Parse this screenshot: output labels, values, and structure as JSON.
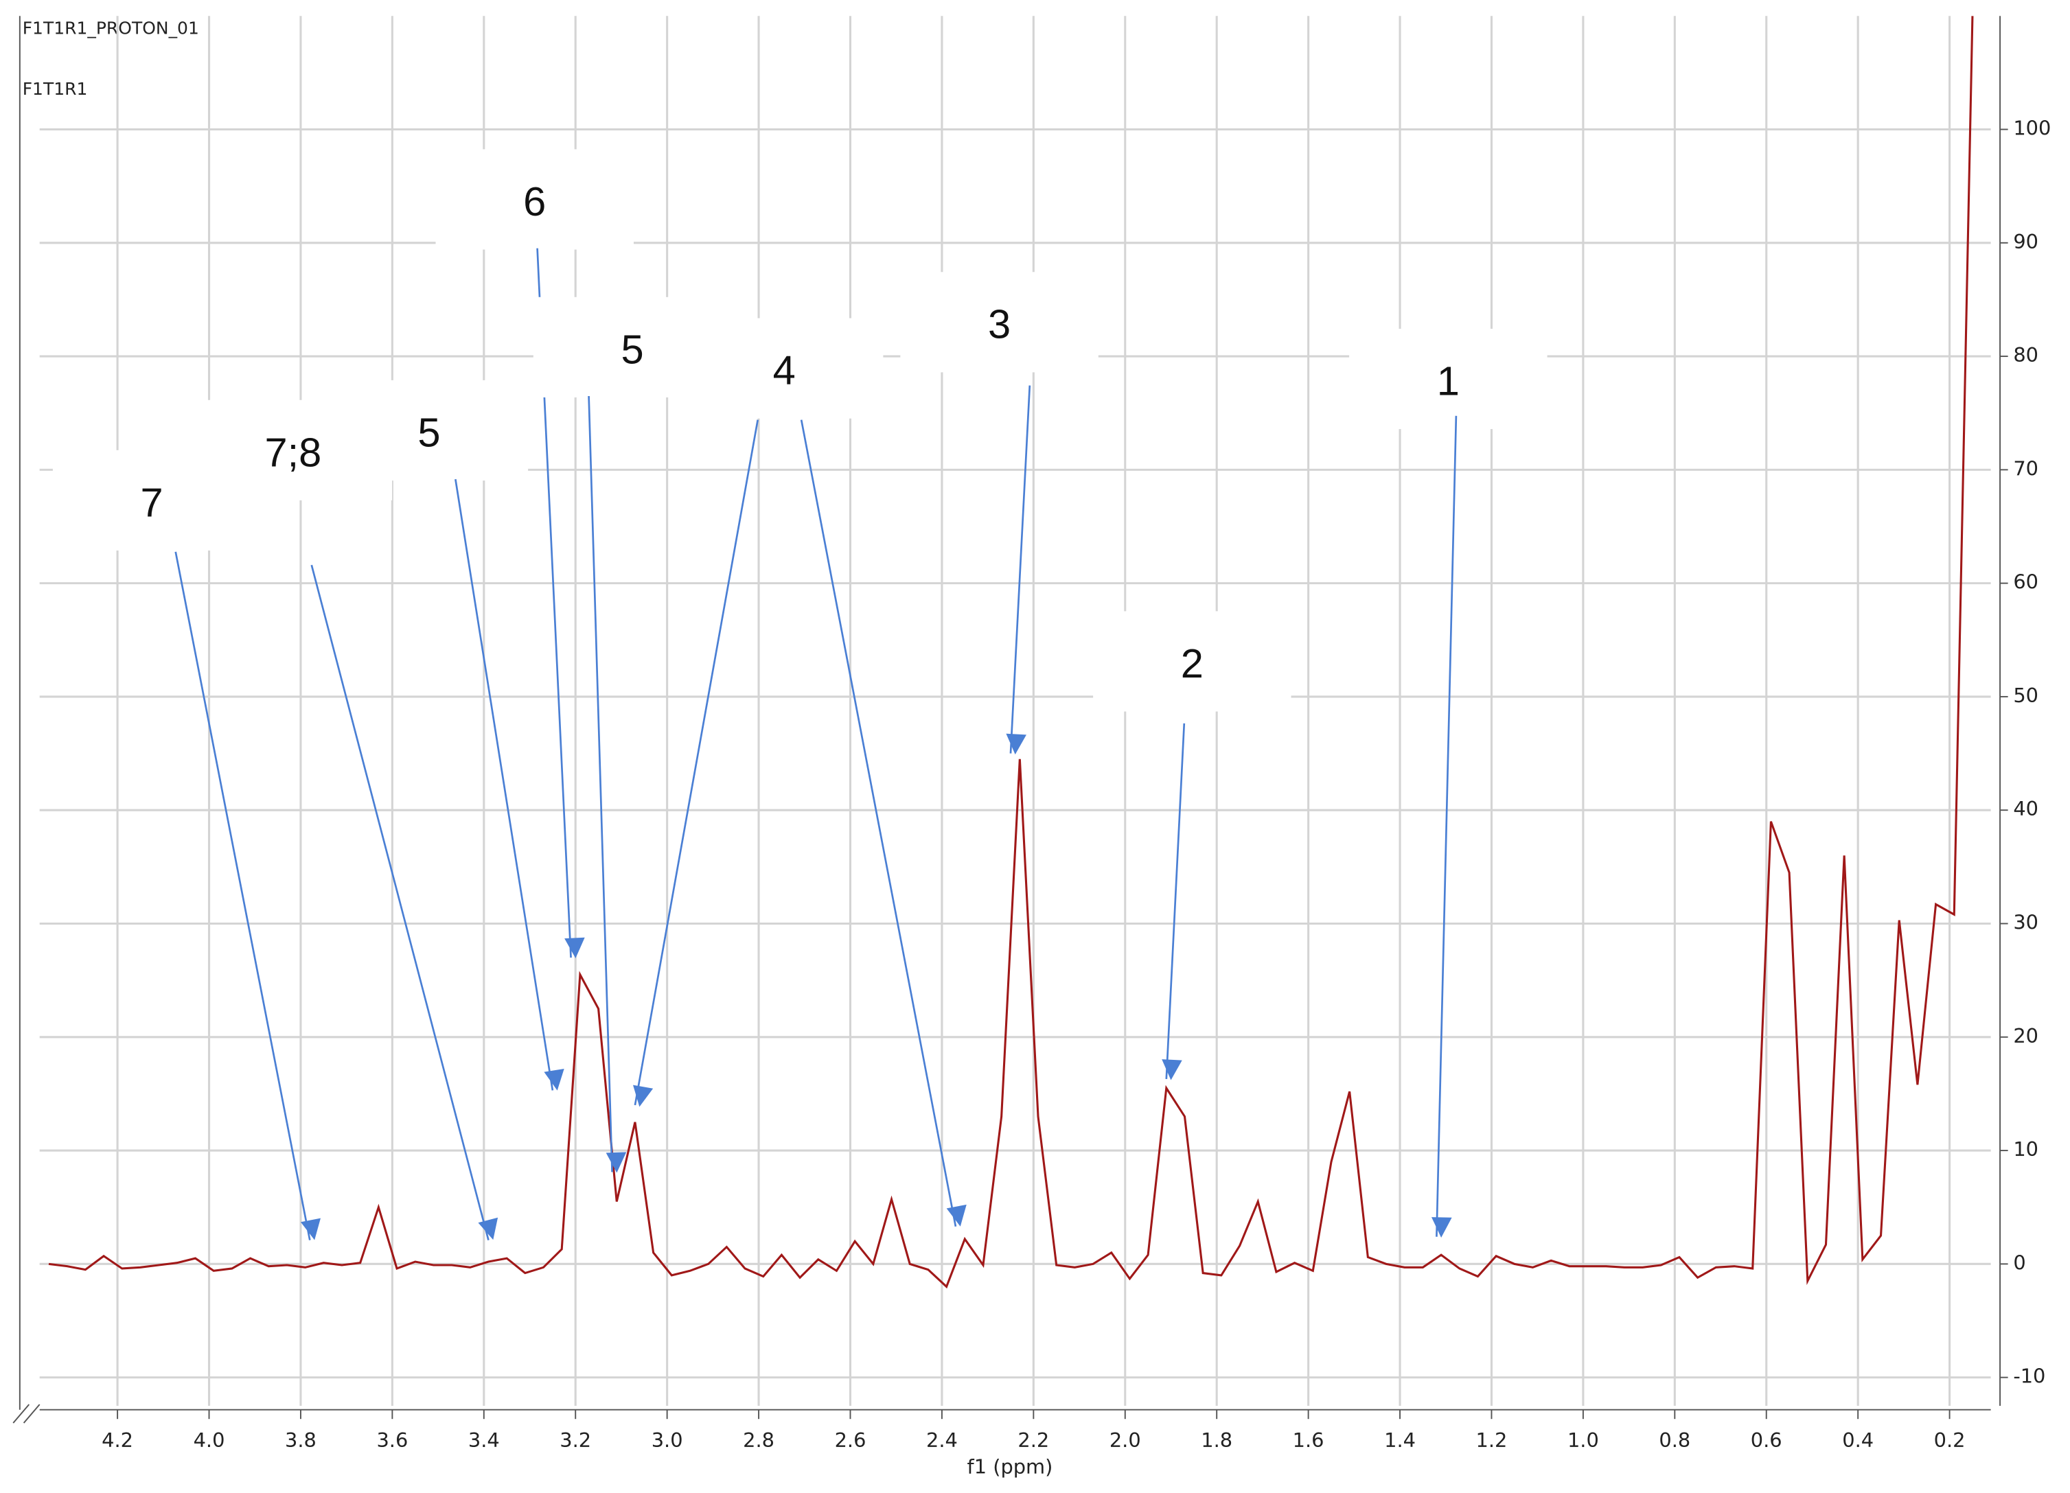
{
  "chart_data": {
    "type": "line",
    "header": [
      "F1T1R1_PROTON_01",
      "F1T1R1"
    ],
    "xlabel": "f1 (ppm)",
    "xlim": [
      4.37,
      0.11
    ],
    "ylim": [
      -12.5,
      110
    ],
    "xticks": [
      4.2,
      {
        "value": 4,
        "label": "4.0"
      },
      3.8,
      3.6,
      3.4,
      3.2,
      {
        "value": 3,
        "label": "3.0"
      },
      2.8,
      2.6,
      2.4,
      2.2,
      {
        "value": 2,
        "label": "2.0"
      },
      1.8,
      1.6,
      1.4,
      1.2,
      {
        "value": 1,
        "label": "1.0"
      },
      0.8,
      0.6,
      0.4,
      0.2
    ],
    "yticks": [
      -10,
      0,
      10,
      20,
      30,
      40,
      50,
      60,
      70,
      80,
      90,
      100
    ],
    "grid": true,
    "color": "#a01818",
    "arrow_color": "#4a7fd4",
    "x": [
      4.35,
      4.31,
      4.27,
      4.23,
      4.19,
      4.15,
      4.11,
      4.07,
      4.03,
      3.99,
      3.95,
      3.91,
      3.87,
      3.83,
      3.79,
      3.75,
      3.71,
      3.67,
      3.63,
      3.59,
      3.55,
      3.51,
      3.47,
      3.43,
      3.39,
      3.35,
      3.31,
      3.27,
      3.23,
      3.19,
      3.15,
      3.11,
      3.07,
      3.03,
      2.99,
      2.95,
      2.91,
      2.87,
      2.83,
      2.79,
      2.75,
      2.71,
      2.67,
      2.63,
      2.59,
      2.55,
      2.51,
      2.47,
      2.43,
      2.39,
      2.35,
      2.31,
      2.27,
      2.23,
      2.19,
      2.15,
      2.11,
      2.07,
      2.03,
      1.99,
      1.95,
      1.91,
      1.87,
      1.83,
      1.79,
      1.75,
      1.71,
      1.67,
      1.63,
      1.59,
      1.55,
      1.51,
      1.47,
      1.43,
      1.39,
      1.35,
      1.31,
      1.27,
      1.23,
      1.19,
      1.15,
      1.11,
      1.07,
      1.03,
      0.99,
      0.95,
      0.91,
      0.87,
      0.83,
      0.79,
      0.75,
      0.71,
      0.67,
      0.63,
      0.59,
      0.55,
      0.51,
      0.47,
      0.43,
      0.39,
      0.35,
      0.31,
      0.27,
      0.23,
      0.19,
      0.15
    ],
    "values": [
      0,
      -0.2,
      -0.5,
      0.7,
      -0.4,
      -0.3,
      -0.1,
      0.1,
      0.5,
      -0.6,
      -0.4,
      0.5,
      -0.2,
      -0.1,
      -0.3,
      0.1,
      -0.1,
      0.1,
      5,
      -0.4,
      0.2,
      -0.1,
      -0.1,
      -0.3,
      0.2,
      0.5,
      -0.8,
      -0.3,
      1.3,
      25.5,
      22.5,
      5.5,
      12.5,
      1,
      -1,
      -0.6,
      0,
      1.5,
      -0.4,
      -1.1,
      0.8,
      -1.2,
      0.4,
      -0.6,
      2,
      0,
      5.7,
      0,
      -0.5,
      -2,
      2.2,
      -0.1,
      13,
      44.5,
      13,
      -0.1,
      -0.3,
      0,
      1,
      -1.3,
      0.8,
      15.5,
      13,
      -0.8,
      -1,
      1.6,
      5.5,
      -0.7,
      0.1,
      -0.6,
      9,
      15.2,
      0.6,
      0,
      -0.3,
      -0.3,
      0.8,
      -0.4,
      -1.1,
      0.7,
      0,
      -0.3,
      0.3,
      -0.2,
      -0.2,
      -0.2,
      -0.3,
      -0.3,
      -0.1,
      0.6,
      -1.2,
      -0.3,
      -0.2,
      -0.4,
      39,
      34.5,
      -1.5,
      1.7,
      36,
      0.4,
      2.5,
      30.3,
      15.8,
      31.7,
      30.8,
      110
    ],
    "annotations": [
      {
        "label": "7",
        "x": 3.78,
        "y": 2.1
      },
      {
        "label": "7;8",
        "x": 3.39,
        "y": 2.1
      },
      {
        "label": "5",
        "x": 3.25,
        "y": 15.3
      },
      {
        "label": "6",
        "x": 3.21,
        "y": 27
      },
      {
        "label": "5",
        "x": 3.12,
        "y": 8.1
      },
      {
        "label": "4",
        "x": 3.07,
        "y": 14
      },
      {
        "label": "4",
        "x": 2.37,
        "y": 3.3
      },
      {
        "label": "3",
        "x": 2.25,
        "y": 45
      },
      {
        "label": "2",
        "x": 1.91,
        "y": 16.3
      },
      {
        "label": "1",
        "x": 1.32,
        "y": 2.4
      }
    ]
  }
}
